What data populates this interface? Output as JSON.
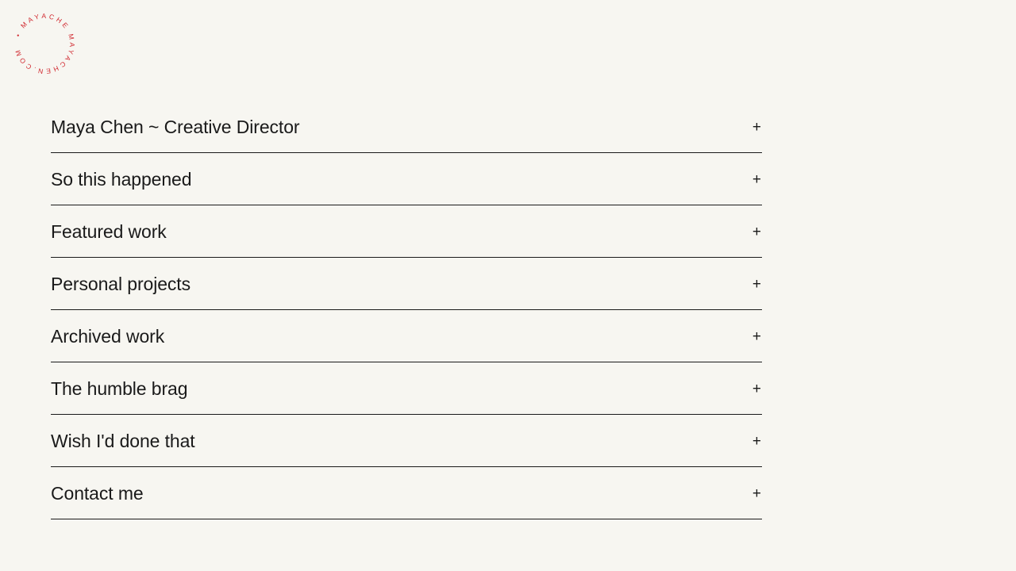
{
  "logo": {
    "text": "• MAYACHE MAYACHEN.COM",
    "color": "#d0282f"
  },
  "sections": [
    {
      "label": "Maya Chen ~ Creative Director",
      "icon": "plus-icon",
      "toggle": "+"
    },
    {
      "label": "So this happened",
      "icon": "plus-icon",
      "toggle": "+"
    },
    {
      "label": "Featured work",
      "icon": "plus-icon",
      "toggle": "+"
    },
    {
      "label": "Personal projects",
      "icon": "plus-icon",
      "toggle": "+"
    },
    {
      "label": "Archived work",
      "icon": "plus-icon",
      "toggle": "+"
    },
    {
      "label": "The humble brag",
      "icon": "plus-icon",
      "toggle": "+"
    },
    {
      "label": "Wish I'd done that",
      "icon": "plus-icon",
      "toggle": "+"
    },
    {
      "label": "Contact me",
      "icon": "plus-icon",
      "toggle": "+"
    }
  ]
}
